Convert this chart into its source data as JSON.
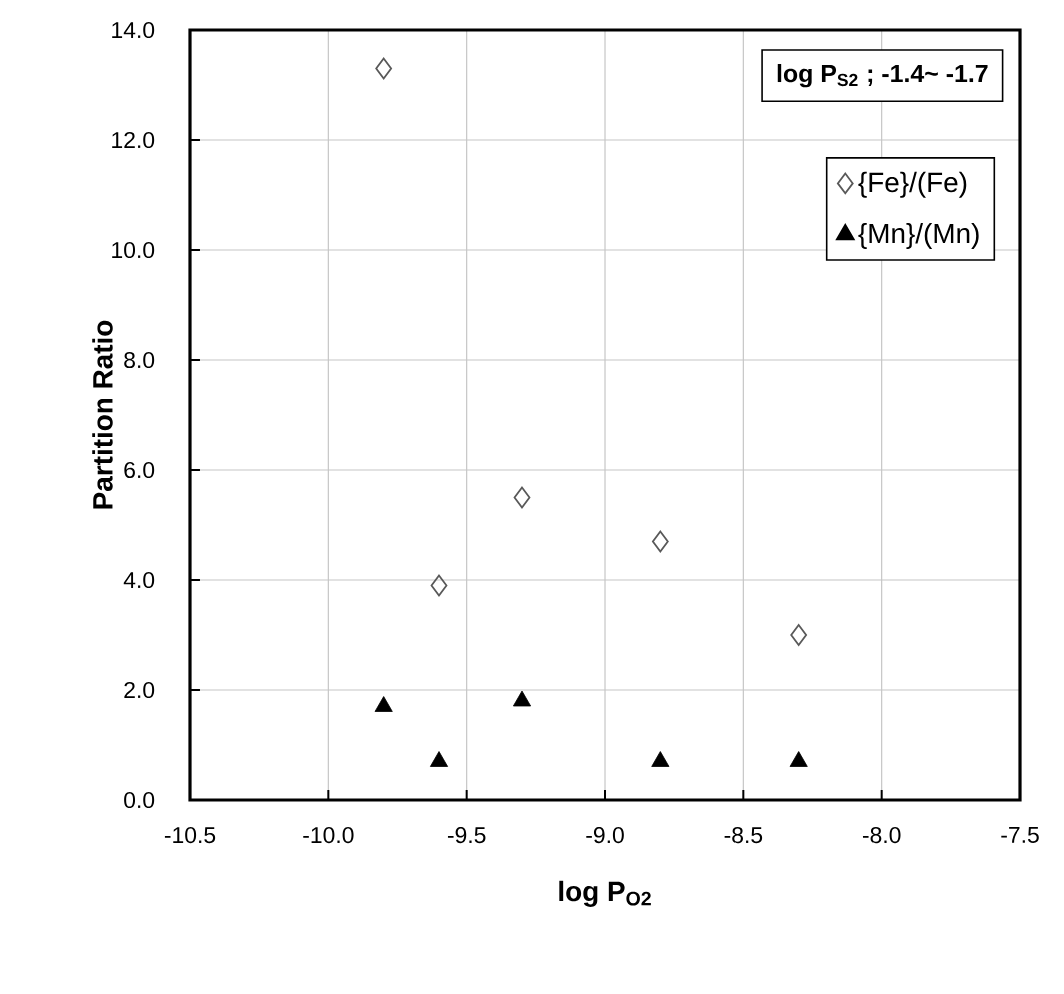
{
  "chart_data": {
    "type": "scatter",
    "xlabel": "log P$_{O2}$",
    "ylabel": "Partition Ratio",
    "annotations": [
      "log P$_{S2}$ ; -1.4~ -1.7"
    ],
    "x": [
      -9.8,
      -9.6,
      -9.3,
      -8.8,
      -8.3
    ],
    "series": [
      {
        "name": "{Fe}/(Fe)",
        "color": "#595959",
        "marker": "diamond",
        "values": [
          13.3,
          3.9,
          5.5,
          4.7,
          3.0
        ]
      },
      {
        "name": "{Mn}/(Mn)",
        "color": "#000000",
        "marker": "triangle",
        "values": [
          1.7,
          0.7,
          1.8,
          0.7,
          0.7
        ]
      }
    ],
    "xlim": [
      -10.5,
      -7.5
    ],
    "xticks": [
      {
        "value": -10.5,
        "label": "-10.5"
      },
      {
        "value": -10.0,
        "label": "-10.0"
      },
      {
        "value": -9.5,
        "label": "-9.5"
      },
      {
        "value": -9.0,
        "label": "-9.0"
      },
      {
        "value": -8.5,
        "label": "-8.5"
      },
      {
        "value": -8.0,
        "label": "-8.0"
      },
      {
        "value": -7.5,
        "label": "-7.5"
      }
    ],
    "ylim": [
      0,
      14
    ],
    "yticks": [
      {
        "value": 0,
        "label": "0.0"
      },
      {
        "value": 2,
        "label": "2.0"
      },
      {
        "value": 4,
        "label": "4.0"
      },
      {
        "value": 6,
        "label": "6.0"
      },
      {
        "value": 8,
        "label": "8.0"
      },
      {
        "value": 10,
        "label": "10.0"
      },
      {
        "value": 12,
        "label": "12.0"
      },
      {
        "value": 14,
        "label": "14.0"
      }
    ],
    "grid": true,
    "legend": "top right"
  }
}
